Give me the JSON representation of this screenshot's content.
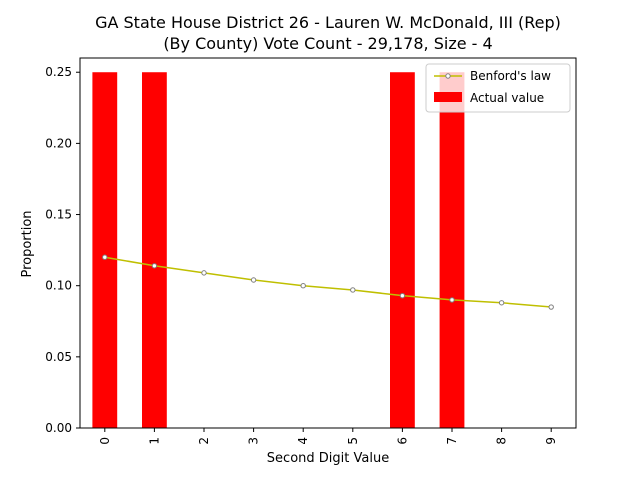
{
  "chart_data": {
    "type": "bar",
    "title_line1": "GA State House District 26 - Lauren W. McDonald, III (Rep)",
    "title_line2": "(By County) Vote Count - 29,178, Size - 4",
    "xlabel": "Second Digit Value",
    "ylabel": "Proportion",
    "categories": [
      "0",
      "1",
      "2",
      "3",
      "4",
      "5",
      "6",
      "7",
      "8",
      "9"
    ],
    "ylim": [
      0,
      0.26
    ],
    "yticks": [
      "0.00",
      "0.05",
      "0.10",
      "0.15",
      "0.20",
      "0.25"
    ],
    "ytick_values": [
      0,
      0.05,
      0.1,
      0.15,
      0.2,
      0.25
    ],
    "series": [
      {
        "name": "Actual value",
        "kind": "bar",
        "color": "#ff0000",
        "values": [
          0.25,
          0.25,
          0,
          0,
          0,
          0,
          0.25,
          0.25,
          0,
          0
        ]
      },
      {
        "name": "Benford's law",
        "kind": "line",
        "color": "#bfbf00",
        "marker_edge": "#7f7f7f",
        "values": [
          0.12,
          0.114,
          0.109,
          0.104,
          0.1,
          0.097,
          0.093,
          0.09,
          0.088,
          0.085
        ]
      }
    ],
    "legend": {
      "placement": "top-right",
      "entries": [
        "Benford's law",
        "Actual value"
      ]
    },
    "grid": false
  }
}
